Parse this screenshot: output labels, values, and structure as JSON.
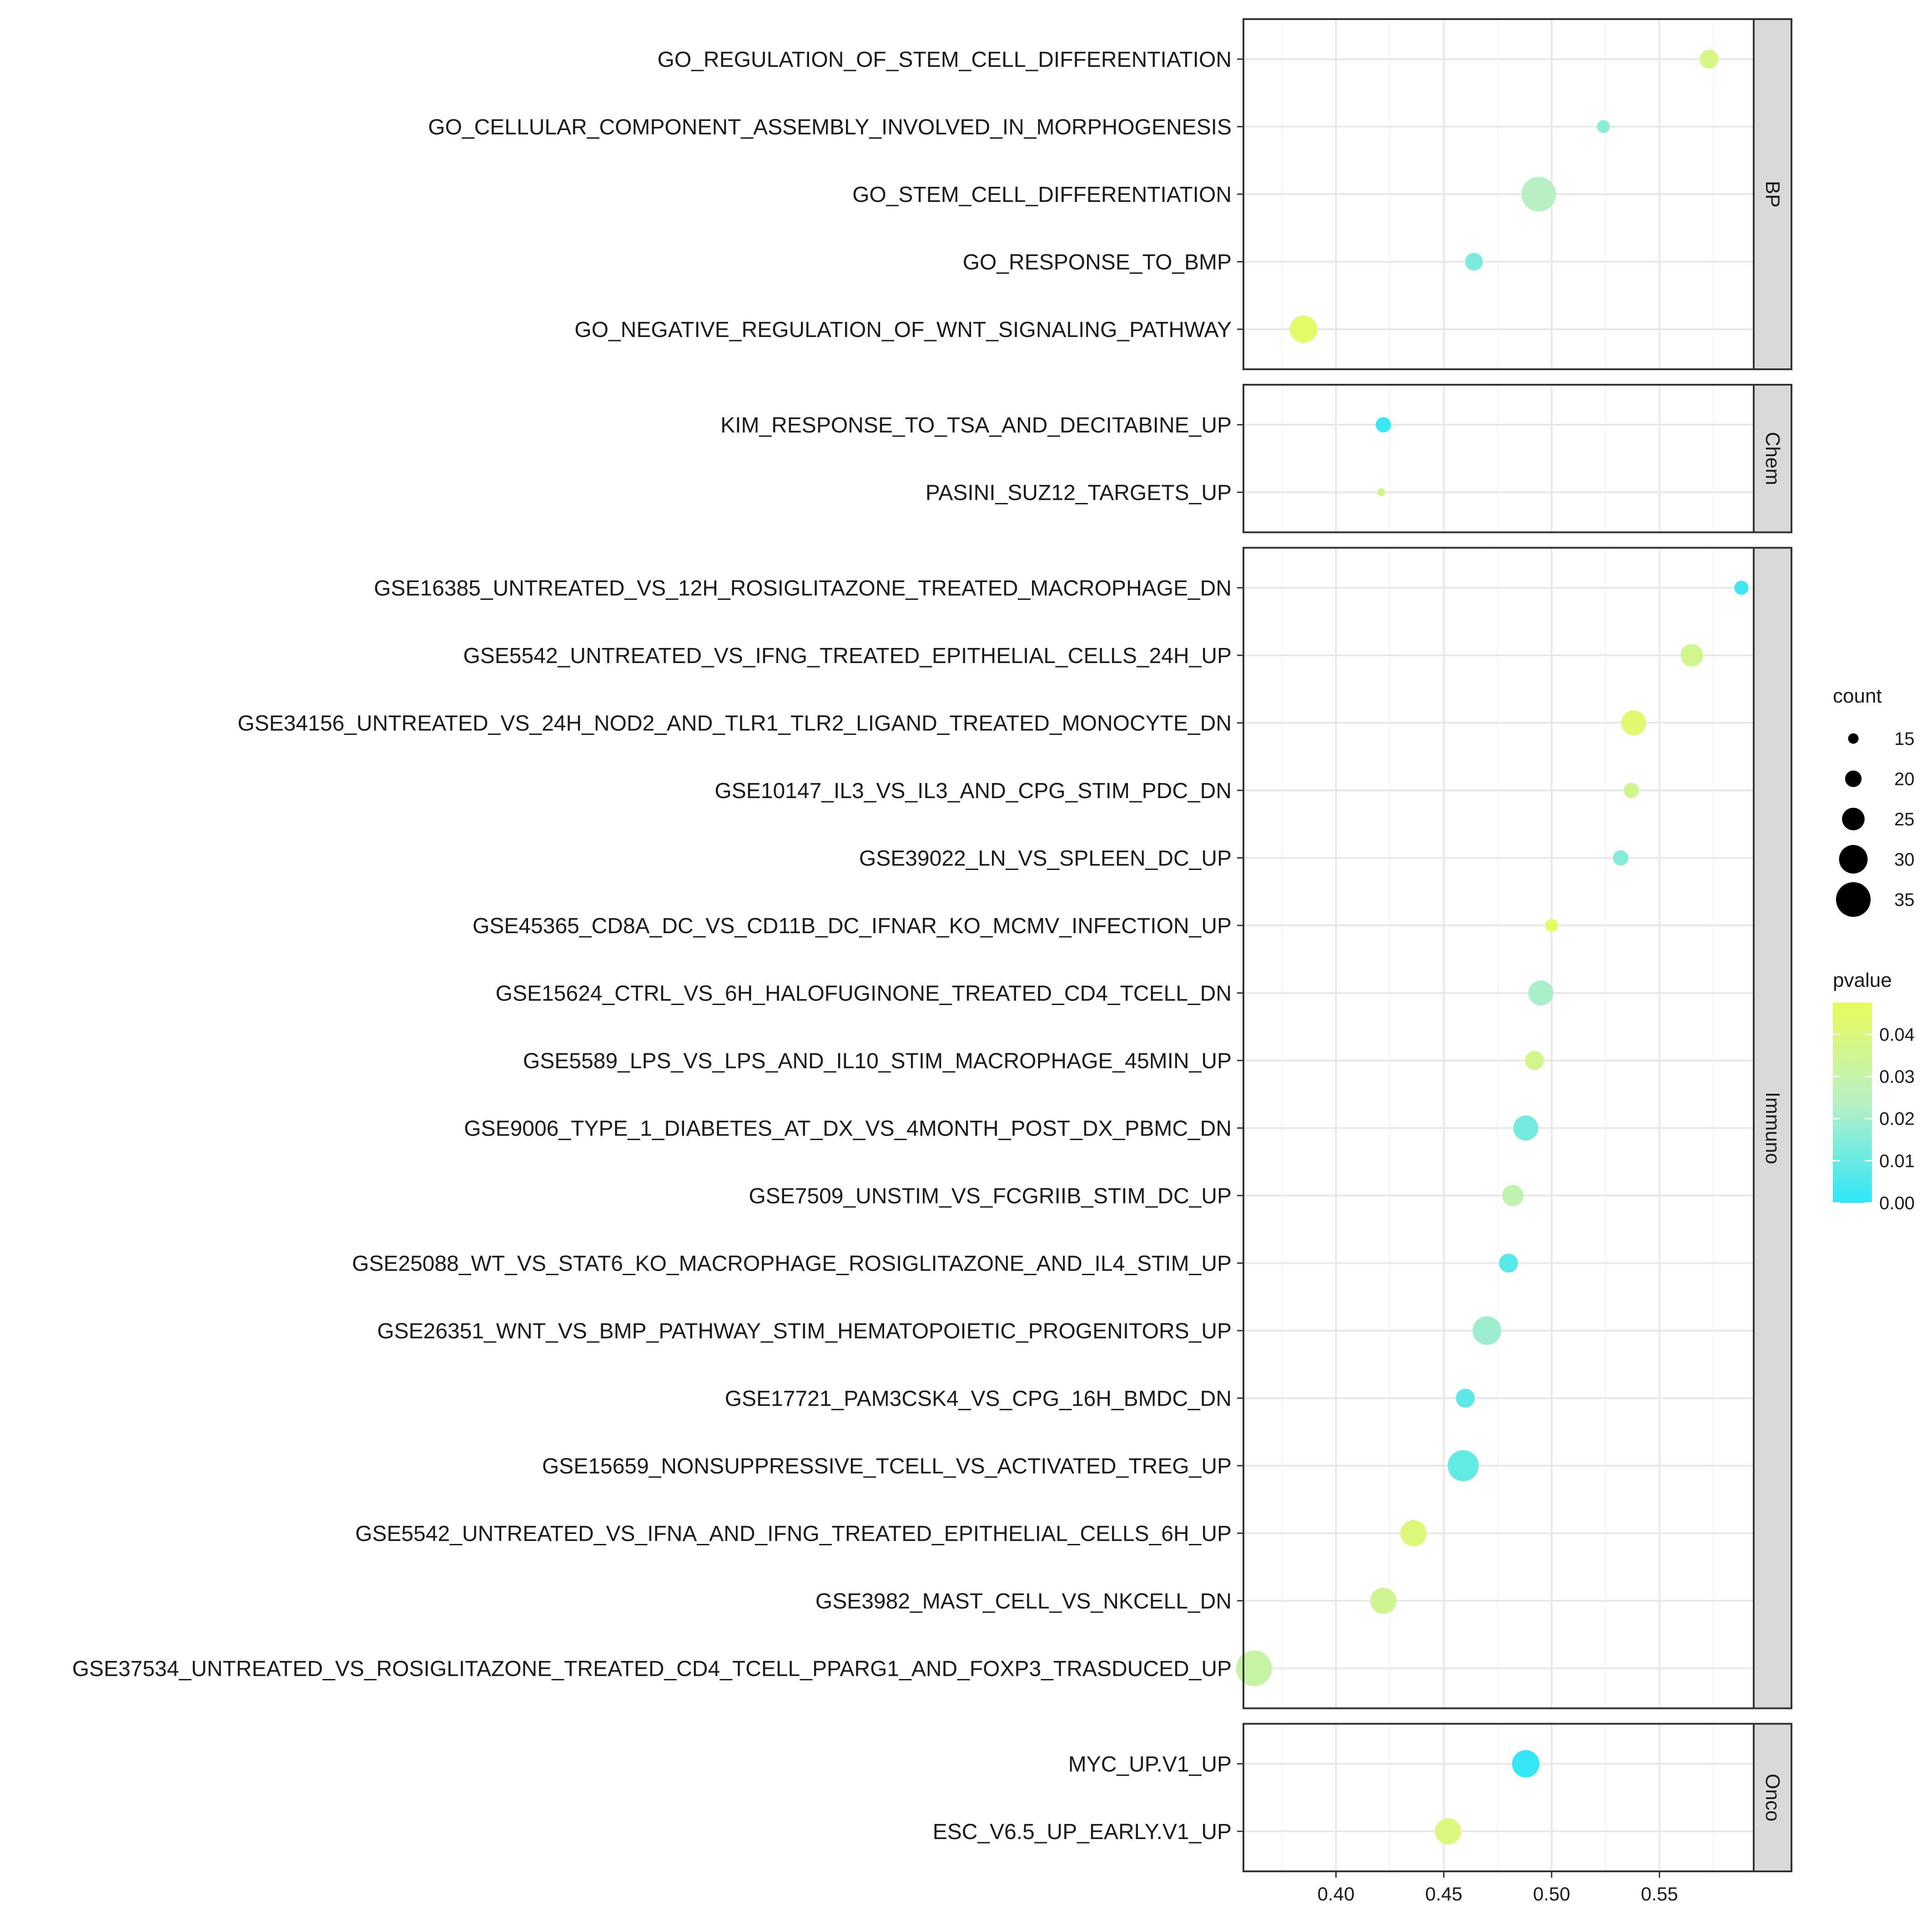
{
  "chart_data": {
    "type": "scatter",
    "xlabel": "",
    "ylabel": "",
    "xlim": [
      0.3571,
      0.5937
    ],
    "x_ticks": [
      "0.40",
      "0.45",
      "0.50",
      "0.55"
    ],
    "x_tick_values": [
      0.4,
      0.45,
      0.5,
      0.55
    ],
    "size_legend": {
      "title": "count",
      "values": [
        15,
        20,
        25,
        30,
        35
      ]
    },
    "color_legend": {
      "title": "pvalue",
      "ticks": [
        0.0,
        0.01,
        0.02,
        0.03,
        0.04
      ],
      "tick_labels": [
        "0.00",
        "0.01",
        "0.02",
        "0.03",
        "0.04"
      ],
      "range": [
        0.0,
        0.0475
      ],
      "low_color": "#2ee6f8",
      "high_color": "#e9fb5c"
    },
    "panels": [
      {
        "label": "BP",
        "points": [
          {
            "term": "GO_REGULATION_OF_STEM_CELL_DIFFERENTIATION",
            "x": 0.573,
            "count": 22,
            "pvalue": 0.038
          },
          {
            "term": "GO_CELLULAR_COMPONENT_ASSEMBLY_INVOLVED_IN_MORPHOGENESIS",
            "x": 0.524,
            "count": 17,
            "pvalue": 0.016
          },
          {
            "term": "GO_STEM_CELL_DIFFERENTIATION",
            "x": 0.494,
            "count": 35,
            "pvalue": 0.024
          },
          {
            "term": "GO_RESPONSE_TO_BMP",
            "x": 0.464,
            "count": 21,
            "pvalue": 0.013
          },
          {
            "term": "GO_NEGATIVE_REGULATION_OF_WNT_SIGNALING_PATHWAY",
            "x": 0.385,
            "count": 29,
            "pvalue": 0.045
          }
        ]
      },
      {
        "label": "Chem",
        "points": [
          {
            "term": "KIM_RESPONSE_TO_TSA_AND_DECITABINE_UP",
            "x": 0.422,
            "count": 19,
            "pvalue": 0.002
          },
          {
            "term": "PASINI_SUZ12_TARGETS_UP",
            "x": 0.421,
            "count": 13,
            "pvalue": 0.037
          }
        ]
      },
      {
        "label": "Immuno",
        "points": [
          {
            "term": "GSE16385_UNTREATED_VS_12H_ROSIGLITAZONE_TREATED_MACROPHAGE_DN",
            "x": 0.588,
            "count": 18,
            "pvalue": 0.003
          },
          {
            "term": "GSE5542_UNTREATED_VS_IFNG_TREATED_EPITHELIAL_CELLS_24H_UP",
            "x": 0.565,
            "count": 25,
            "pvalue": 0.036
          },
          {
            "term": "GSE34156_UNTREATED_VS_24H_NOD2_AND_TLR1_TLR2_LIGAND_TREATED_MONOCYTE_DN",
            "x": 0.538,
            "count": 27,
            "pvalue": 0.043
          },
          {
            "term": "GSE10147_IL3_VS_IL3_AND_CPG_STIM_PDC_DN",
            "x": 0.537,
            "count": 19,
            "pvalue": 0.036
          },
          {
            "term": "GSE39022_LN_VS_SPLEEN_DC_UP",
            "x": 0.532,
            "count": 19,
            "pvalue": 0.015
          },
          {
            "term": "GSE45365_CD8A_DC_VS_CD11B_DC_IFNAR_KO_MCMV_INFECTION_UP",
            "x": 0.5,
            "count": 17,
            "pvalue": 0.046
          },
          {
            "term": "GSE15624_CTRL_VS_6H_HALOFUGINONE_TREATED_CD4_TCELL_DN",
            "x": 0.495,
            "count": 27,
            "pvalue": 0.021
          },
          {
            "term": "GSE5589_LPS_VS_LPS_AND_IL10_STIM_MACROPHAGE_45MIN_UP",
            "x": 0.492,
            "count": 22,
            "pvalue": 0.037
          },
          {
            "term": "GSE9006_TYPE_1_DIABETES_AT_DX_VS_4MONTH_POST_DX_PBMC_DN",
            "x": 0.488,
            "count": 27,
            "pvalue": 0.012
          },
          {
            "term": "GSE7509_UNSTIM_VS_FCGRIIB_STIM_DC_UP",
            "x": 0.482,
            "count": 24,
            "pvalue": 0.028
          },
          {
            "term": "GSE25088_WT_VS_STAT6_KO_MACROPHAGE_ROSIGLITAZONE_AND_IL4_STIM_UP",
            "x": 0.48,
            "count": 22,
            "pvalue": 0.007
          },
          {
            "term": "GSE26351_WNT_VS_BMP_PATHWAY_STIM_HEMATOPOIETIC_PROGENITORS_UP",
            "x": 0.47,
            "count": 30,
            "pvalue": 0.019
          },
          {
            "term": "GSE17721_PAM3CSK4_VS_CPG_16H_BMDC_DN",
            "x": 0.46,
            "count": 22,
            "pvalue": 0.008
          },
          {
            "term": "GSE15659_NONSUPPRESSIVE_TCELL_VS_ACTIVATED_TREG_UP",
            "x": 0.459,
            "count": 32,
            "pvalue": 0.009
          },
          {
            "term": "GSE5542_UNTREATED_VS_IFNA_AND_IFNG_TREATED_EPITHELIAL_CELLS_6H_UP",
            "x": 0.436,
            "count": 28,
            "pvalue": 0.041
          },
          {
            "term": "GSE3982_MAST_CELL_VS_NKCELL_DN",
            "x": 0.422,
            "count": 28,
            "pvalue": 0.035
          },
          {
            "term": "GSE37534_UNTREATED_VS_ROSIGLITAZONE_TREATED_CD4_TCELL_PPARG1_AND_FOXP3_TRASDUCED_UP",
            "x": 0.362,
            "count": 36,
            "pvalue": 0.031
          }
        ]
      },
      {
        "label": "Onco",
        "points": [
          {
            "term": "MYC_UP.V1_UP",
            "x": 0.488,
            "count": 29,
            "pvalue": 0.001
          },
          {
            "term": "ESC_V6.5_UP_EARLY.V1_UP",
            "x": 0.452,
            "count": 28,
            "pvalue": 0.04
          }
        ]
      }
    ]
  }
}
